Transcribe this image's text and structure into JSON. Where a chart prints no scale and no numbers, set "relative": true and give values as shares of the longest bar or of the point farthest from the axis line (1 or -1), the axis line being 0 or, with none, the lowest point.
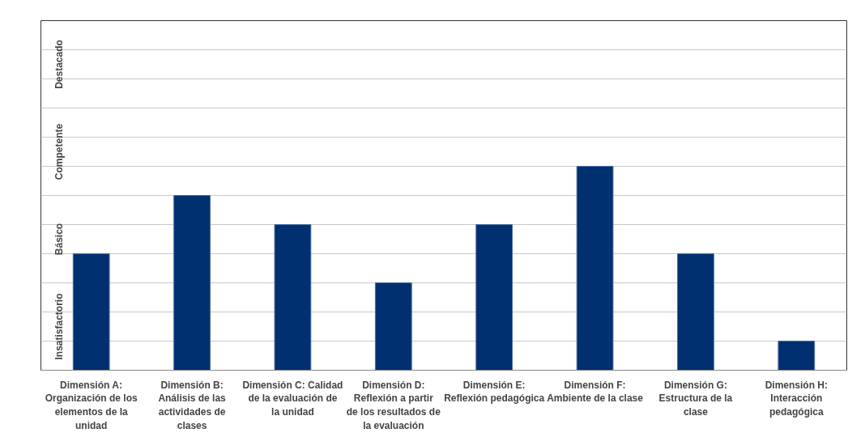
{
  "chart_data": {
    "type": "bar",
    "categories": [
      "Dimensión A: Organización de los elementos de la unidad",
      "Dimensión B: Análisis de las actividades de clases",
      "Dimensión C: Calidad de la evaluación de la unidad",
      "Dimensión D: Reflexión a partir de los resultados de la evaluación",
      "Dimensión E: Reflexión pedagógica",
      "Dimensión F: Ambiente de la clase",
      "Dimensión G: Estructura de la clase",
      "Dimensión H: Interacción pedagógica"
    ],
    "values": [
      0.571,
      0.857,
      0.714,
      0.429,
      0.714,
      1,
      0.571,
      0.143
    ],
    "relative": true,
    "color": "#003070",
    "annotations": [
      "Insatisfactorio",
      "Básico",
      "Competente",
      "Destacado"
    ],
    "grid": "y"
  }
}
